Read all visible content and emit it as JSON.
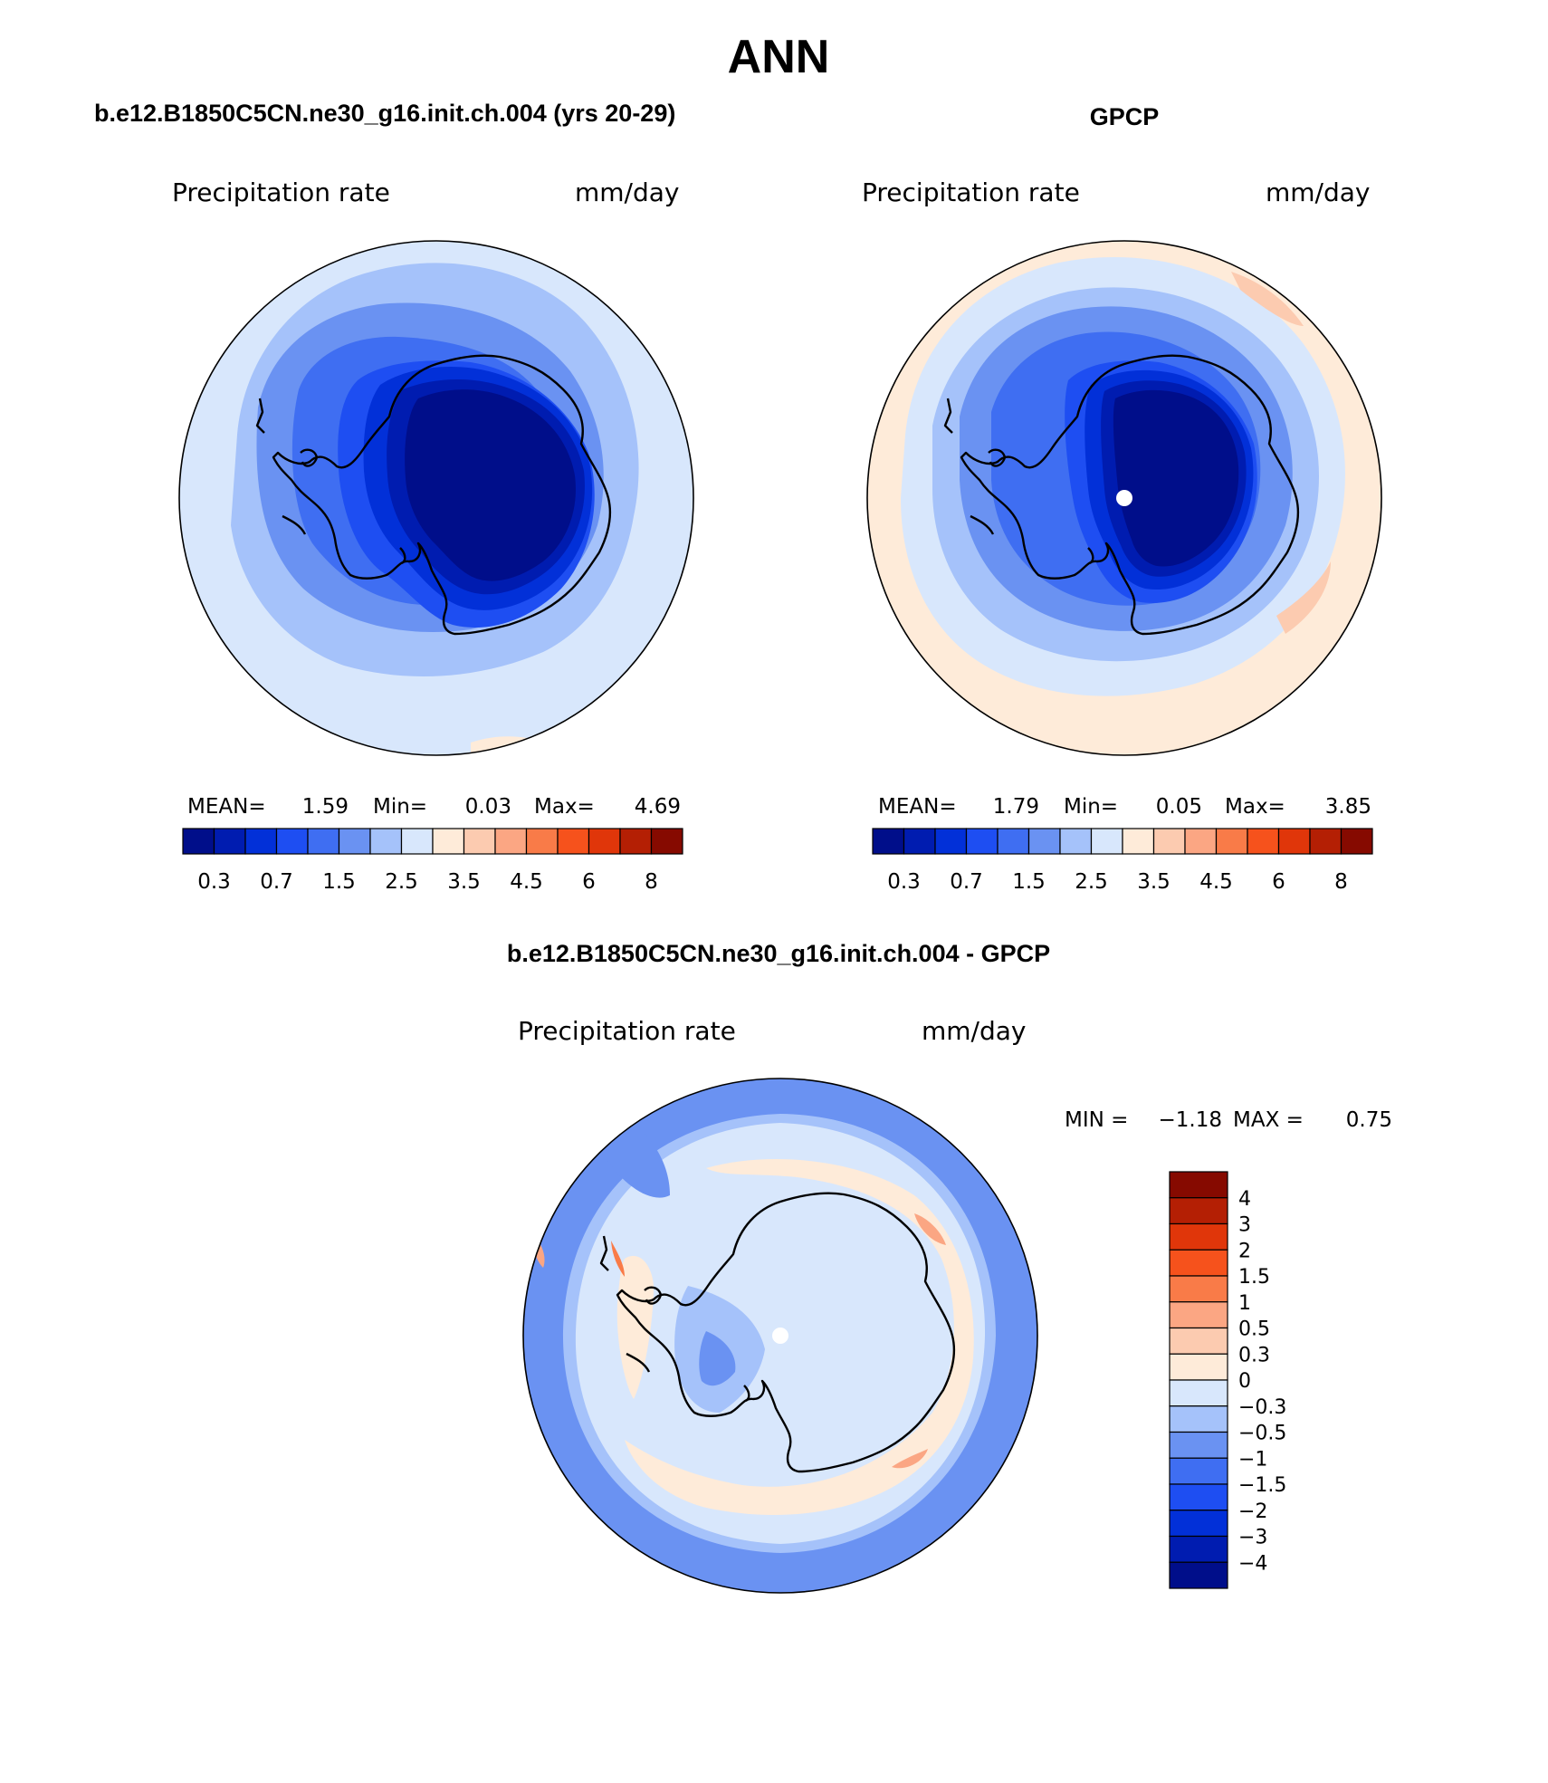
{
  "title": "ANN",
  "panels": [
    {
      "id": "model",
      "header": "b.e12.B1850C5CN.ne30_g16.init.ch.004 (yrs 20-29)",
      "variable": "Precipitation rate",
      "units": "mm/day",
      "stats": {
        "mean_label": "MEAN=",
        "mean": "1.59",
        "min_label": "Min=",
        "min": "0.03",
        "max_label": "Max=",
        "max": "4.69"
      }
    },
    {
      "id": "obs",
      "header": "GPCP",
      "variable": "Precipitation rate",
      "units": "mm/day",
      "stats": {
        "mean_label": "MEAN=",
        "mean": "1.79",
        "min_label": "Min=",
        "min": "0.05",
        "max_label": "Max=",
        "max": "3.85"
      }
    },
    {
      "id": "diff",
      "header": "b.e12.B1850C5CN.ne30_g16.init.ch.004 - GPCP",
      "variable": "Precipitation rate",
      "units": "mm/day",
      "stats": {
        "min_label": "MIN =",
        "min": "−1.18",
        "max_label": "MAX =",
        "max": "0.75"
      }
    }
  ],
  "colorbars": {
    "absolute": {
      "colors": [
        "#000e8a",
        "#001cb0",
        "#0230d8",
        "#1e4ef2",
        "#3f6ef2",
        "#6a92f2",
        "#a5c2fa",
        "#d8e7fc",
        "#feebd9",
        "#fccbb0",
        "#fba683",
        "#f97b48",
        "#f6521c",
        "#e0360a",
        "#b41f04",
        "#860a00"
      ],
      "tick_labels": [
        "0.3",
        "0.7",
        "1.5",
        "2.5",
        "3.5",
        "4.5",
        "6",
        "8"
      ]
    },
    "difference": {
      "colors": [
        "#860a00",
        "#b41f04",
        "#e0360a",
        "#f6521c",
        "#f97b48",
        "#fba683",
        "#fccbb0",
        "#feebd9",
        "#d8e7fc",
        "#a5c2fa",
        "#6a92f2",
        "#3f6ef2",
        "#1e4ef2",
        "#0230d8",
        "#001cb0",
        "#000e8a"
      ],
      "tick_labels": [
        "4",
        "3",
        "2",
        "1.5",
        "1",
        "0.5",
        "0.3",
        "0",
        "−0.3",
        "−0.5",
        "−1",
        "−1.5",
        "−2",
        "−3",
        "−4"
      ]
    }
  },
  "map_fields": {
    "model": [
      {
        "level": 7,
        "color": "#d8e7fc"
      },
      {
        "level": 6,
        "color": "#a5c2fa"
      },
      {
        "level": 5,
        "color": "#6a92f2"
      },
      {
        "level": 4,
        "color": "#3f6ef2"
      },
      {
        "level": 3,
        "color": "#1e4ef2"
      },
      {
        "level": 2,
        "color": "#0230d8"
      },
      {
        "level": 1,
        "color": "#001cb0"
      },
      {
        "level": 0,
        "color": "#000e8a"
      }
    ],
    "obs": [
      {
        "level": 8,
        "color": "#feebd9"
      },
      {
        "level": 7,
        "color": "#d8e7fc"
      },
      {
        "level": 6,
        "color": "#a5c2fa"
      },
      {
        "level": 5,
        "color": "#6a92f2"
      },
      {
        "level": 4,
        "color": "#3f6ef2"
      },
      {
        "level": 3,
        "color": "#1e4ef2"
      },
      {
        "level": 2,
        "color": "#0230d8"
      },
      {
        "level": 1,
        "color": "#001cb0"
      },
      {
        "level": 0,
        "color": "#000e8a"
      }
    ],
    "diff": [
      {
        "level": 9,
        "color": "#a5c2fa"
      },
      {
        "level": 8,
        "color": "#d8e7fc"
      },
      {
        "level": 7,
        "color": "#feebd9"
      },
      {
        "level": 8,
        "color": "#d8e7fc"
      },
      {
        "level": 10,
        "color": "#6a92f2"
      }
    ]
  }
}
